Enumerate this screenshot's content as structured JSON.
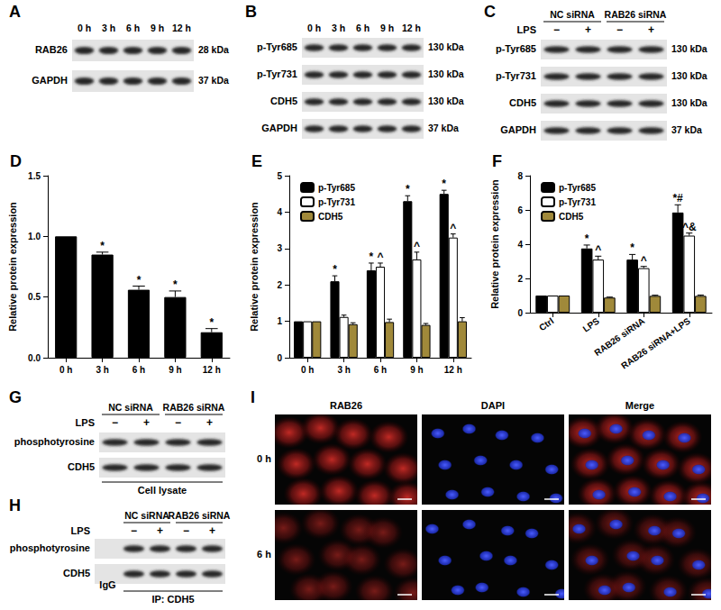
{
  "panels": {
    "A": {
      "label": "A",
      "lanes": [
        "0 h",
        "3 h",
        "6 h",
        "9 h",
        "12 h"
      ],
      "rows": [
        {
          "name": "RAB26",
          "size": "28 kDa"
        },
        {
          "name": "GAPDH",
          "size": "37 kDa"
        }
      ]
    },
    "B": {
      "label": "B",
      "lanes": [
        "0 h",
        "3 h",
        "6 h",
        "9 h",
        "12 h"
      ],
      "rows": [
        {
          "name": "p-Tyr685",
          "size": "130 kDa"
        },
        {
          "name": "p-Tyr731",
          "size": "130 kDa"
        },
        {
          "name": "CDH5",
          "size": "130 kDa"
        },
        {
          "name": "GAPDH",
          "size": "37 kDa"
        }
      ]
    },
    "C": {
      "label": "C",
      "groups": [
        "NC siRNA",
        "RAB26 siRNA"
      ],
      "treatment": "LPS",
      "lane_signs": [
        "−",
        "+",
        "−",
        "+"
      ],
      "rows": [
        {
          "name": "p-Tyr685",
          "size": "130 kDa"
        },
        {
          "name": "p-Tyr731",
          "size": "130 kDa"
        },
        {
          "name": "CDH5",
          "size": "130 kDa"
        },
        {
          "name": "GAPDH",
          "size": "37 kDa"
        }
      ]
    },
    "G": {
      "label": "G",
      "groups": [
        "NC siRNA",
        "RAB26 siRNA"
      ],
      "treatment": "LPS",
      "lane_signs": [
        "−",
        "+",
        "−",
        "+"
      ],
      "rows": [
        {
          "name": "phosphotyrosine"
        },
        {
          "name": "CDH5"
        }
      ],
      "footer": "Cell lysate"
    },
    "H": {
      "label": "H",
      "groups": [
        "NC siRNA",
        "RAB26 siRNA"
      ],
      "treatment": "LPS",
      "lane_signs": [
        "−",
        "+",
        "−",
        "+"
      ],
      "extra_lane": "IgG",
      "rows": [
        {
          "name": "phosphotyrosine"
        },
        {
          "name": "CDH5"
        }
      ],
      "footer": "IP: CDH5"
    },
    "I": {
      "label": "I",
      "columns": [
        "RAB26",
        "DAPI",
        "Merge"
      ],
      "rows": [
        "0 h",
        "6 h"
      ]
    }
  },
  "chart_data": [
    {
      "panel": "D",
      "type": "bar",
      "ylabel": "Relative protein expression",
      "categories": [
        "0 h",
        "3 h",
        "6 h",
        "9 h",
        "12 h"
      ],
      "values": [
        1,
        0.85,
        0.56,
        0.5,
        0.21
      ],
      "errors": [
        0,
        0.02,
        0.03,
        0.05,
        0.03
      ],
      "annotations": [
        null,
        "*",
        "*",
        "*",
        "*"
      ],
      "color": "#000000",
      "ylim": [
        0,
        1.5
      ],
      "yticks": [
        {
          "value": 0,
          "label": "0.0"
        },
        0.5,
        {
          "value": 1,
          "label": "1.0"
        },
        1.5
      ],
      "grid": false
    },
    {
      "panel": "E",
      "type": "bar",
      "ylabel": "Relative protein expression",
      "categories": [
        "0 h",
        "3 h",
        "6 h",
        "9 h",
        "12 h"
      ],
      "series": [
        {
          "name": "p-Tyr685",
          "color": "#000000",
          "values": [
            1,
            2.1,
            2.4,
            4.3,
            4.5
          ],
          "errors": [
            0,
            0.15,
            0.2,
            0.15,
            0.1
          ],
          "annotations": [
            null,
            "*",
            "*",
            "*",
            "*"
          ]
        },
        {
          "name": "p-Tyr731",
          "color": "#ffffff",
          "values": [
            1,
            1.12,
            2.5,
            2.7,
            3.3
          ],
          "errors": [
            0,
            0.05,
            0.1,
            0.2,
            0.1
          ],
          "annotations": [
            null,
            null,
            "^",
            "^",
            "^"
          ]
        },
        {
          "name": "CDH5",
          "color": "#a0893a",
          "values": [
            1,
            0.92,
            0.98,
            0.9,
            1.0
          ],
          "errors": [
            0,
            0.04,
            0.08,
            0.04,
            0.1
          ],
          "annotations": [
            null,
            null,
            null,
            null,
            null
          ]
        }
      ],
      "ylim": [
        0,
        5
      ],
      "yticks": [
        0,
        1,
        2,
        3,
        4,
        5
      ],
      "grid": false,
      "legend": "top-left"
    },
    {
      "panel": "F",
      "type": "bar",
      "ylabel": "Relative protein expression",
      "categories": [
        "Ctrl",
        "LPS",
        "RAB26 siRNA",
        "RAB26 siRNA+LPS"
      ],
      "series": [
        {
          "name": "p-Tyr685",
          "color": "#000000",
          "values": [
            1,
            3.75,
            3.1,
            5.85
          ],
          "errors": [
            0,
            0.2,
            0.3,
            0.45
          ],
          "annotations": [
            null,
            "*",
            "*",
            "*#"
          ]
        },
        {
          "name": "p-Tyr731",
          "color": "#ffffff",
          "values": [
            1,
            3.1,
            2.6,
            4.5
          ],
          "errors": [
            0,
            0.2,
            0.1,
            0.15
          ],
          "annotations": [
            null,
            "^",
            "^",
            "^&"
          ]
        },
        {
          "name": "CDH5",
          "color": "#a0893a",
          "values": [
            1,
            0.88,
            0.98,
            0.98
          ],
          "errors": [
            0,
            0.03,
            0.04,
            0.05
          ],
          "annotations": [
            null,
            null,
            null,
            null
          ]
        }
      ],
      "ylim": [
        0,
        8
      ],
      "yticks": [
        0,
        2,
        4,
        6,
        8
      ],
      "grid": false,
      "legend": "top-left"
    }
  ]
}
